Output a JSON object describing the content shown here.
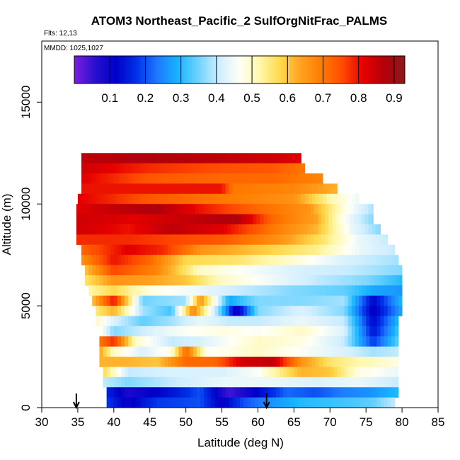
{
  "chart_data": {
    "type": "heatmap",
    "title": "ATOM3 Northeast_Pacific_2 SulfOrgNitFrac_PALMS",
    "subtitle_flights": "Flts: 12,13",
    "subtitle_dates": "MMDD: 1025,1027",
    "xlabel": "Latitude (deg N)",
    "ylabel": "Altitude (m)",
    "xlim": [
      30,
      85
    ],
    "ylim": [
      0,
      18000
    ],
    "x_ticks": [
      "30",
      "35",
      "40",
      "45",
      "50",
      "55",
      "60",
      "65",
      "70",
      "75",
      "80",
      "85"
    ],
    "y_ticks": [
      "0",
      "5000",
      "10000",
      "15000"
    ],
    "colorbar": {
      "range": [
        0.0,
        0.93
      ],
      "ticks": [
        "0.1",
        "0.2",
        "0.3",
        "0.4",
        "0.5",
        "0.6",
        "0.7",
        "0.8",
        "0.9"
      ],
      "colors": [
        "#7a1fe0",
        "#2a10d0",
        "#0000c8",
        "#0030e8",
        "#1e78ff",
        "#16b4ff",
        "#6fd3ff",
        "#cfeeff",
        "#fffff5",
        "#fff7a8",
        "#ffd84a",
        "#ffa01e",
        "#ff7a00",
        "#ff4a00",
        "#e60000",
        "#b4000a",
        "#8b1a1a"
      ]
    },
    "grid": false,
    "markers": {
      "arrow_latitudes": [
        34.8,
        61.2
      ]
    },
    "bands": [
      {
        "alt": [
          12000,
          12500
        ],
        "lat": [
          35.5,
          66
        ],
        "stops": [
          [
            35.5,
            0.86
          ],
          [
            45,
            0.88
          ],
          [
            55,
            0.86
          ],
          [
            63,
            0.84
          ],
          [
            66,
            0.82
          ]
        ]
      },
      {
        "alt": [
          11500,
          12000
        ],
        "lat": [
          35.5,
          66.5
        ],
        "stops": [
          [
            35.5,
            0.84
          ],
          [
            45,
            0.78
          ],
          [
            55,
            0.75
          ],
          [
            62,
            0.74
          ],
          [
            66.5,
            0.7
          ]
        ]
      },
      {
        "alt": [
          11000,
          11500
        ],
        "lat": [
          35.5,
          69
        ],
        "stops": [
          [
            35.5,
            0.82
          ],
          [
            45,
            0.74
          ],
          [
            55,
            0.72
          ],
          [
            62,
            0.72
          ],
          [
            69,
            0.68
          ]
        ]
      },
      {
        "alt": [
          10500,
          11000
        ],
        "lat": [
          35.5,
          71
        ],
        "stops": [
          [
            35.5,
            0.8
          ],
          [
            42,
            0.8
          ],
          [
            55,
            0.8
          ],
          [
            56.5,
            0.7
          ],
          [
            65,
            0.68
          ],
          [
            71,
            0.62
          ]
        ]
      },
      {
        "alt": [
          10000,
          10500
        ],
        "lat": [
          35,
          74
        ],
        "stops": [
          [
            35,
            0.82
          ],
          [
            45,
            0.74
          ],
          [
            55,
            0.7
          ],
          [
            65,
            0.66
          ],
          [
            70,
            0.52
          ],
          [
            74,
            0.44
          ]
        ]
      },
      {
        "alt": [
          9500,
          10000
        ],
        "lat": [
          34.8,
          76
        ],
        "stops": [
          [
            34.8,
            0.82
          ],
          [
            41,
            0.86
          ],
          [
            46,
            0.88
          ],
          [
            52,
            0.8
          ],
          [
            60,
            0.72
          ],
          [
            67,
            0.66
          ],
          [
            72,
            0.48
          ],
          [
            76,
            0.38
          ]
        ]
      },
      {
        "alt": [
          9000,
          9500
        ],
        "lat": [
          34.8,
          76
        ],
        "stops": [
          [
            34.8,
            0.84
          ],
          [
            43,
            0.82
          ],
          [
            52,
            0.86
          ],
          [
            57,
            0.88
          ],
          [
            62,
            0.72
          ],
          [
            68,
            0.64
          ],
          [
            72,
            0.46
          ],
          [
            76,
            0.36
          ]
        ]
      },
      {
        "alt": [
          8500,
          9000
        ],
        "lat": [
          34.8,
          77
        ],
        "stops": [
          [
            34.8,
            0.84
          ],
          [
            42,
            0.8
          ],
          [
            48,
            0.86
          ],
          [
            55,
            0.82
          ],
          [
            62,
            0.7
          ],
          [
            68,
            0.62
          ],
          [
            73,
            0.44
          ],
          [
            77,
            0.36
          ]
        ]
      },
      {
        "alt": [
          8000,
          8500
        ],
        "lat": [
          34.8,
          78
        ],
        "stops": [
          [
            34.8,
            0.78
          ],
          [
            42,
            0.78
          ],
          [
            48,
            0.76
          ],
          [
            55,
            0.74
          ],
          [
            63,
            0.66
          ],
          [
            69,
            0.56
          ],
          [
            74,
            0.44
          ],
          [
            78,
            0.4
          ]
        ]
      },
      {
        "alt": [
          7500,
          8000
        ],
        "lat": [
          35.5,
          79
        ],
        "stops": [
          [
            35.5,
            0.72
          ],
          [
            42,
            0.82
          ],
          [
            47,
            0.78
          ],
          [
            52,
            0.66
          ],
          [
            60,
            0.6
          ],
          [
            68,
            0.54
          ],
          [
            74,
            0.44
          ],
          [
            79,
            0.4
          ]
        ]
      },
      {
        "alt": [
          7000,
          7500
        ],
        "lat": [
          35.5,
          79.5
        ],
        "stops": [
          [
            35.5,
            0.66
          ],
          [
            40,
            0.8
          ],
          [
            45,
            0.72
          ],
          [
            50,
            0.58
          ],
          [
            57,
            0.56
          ],
          [
            64,
            0.5
          ],
          [
            72,
            0.42
          ],
          [
            79.5,
            0.38
          ]
        ]
      },
      {
        "alt": [
          6500,
          7000
        ],
        "lat": [
          36,
          80
        ],
        "stops": [
          [
            36,
            0.6
          ],
          [
            40,
            0.76
          ],
          [
            46,
            0.68
          ],
          [
            52,
            0.5
          ],
          [
            58,
            0.46
          ],
          [
            65,
            0.42
          ],
          [
            73,
            0.4
          ],
          [
            80,
            0.36
          ]
        ]
      },
      {
        "alt": [
          6000,
          6500
        ],
        "lat": [
          36,
          80
        ],
        "stops": [
          [
            36,
            0.56
          ],
          [
            40,
            0.66
          ],
          [
            45,
            0.64
          ],
          [
            50,
            0.6
          ],
          [
            55,
            0.5
          ],
          [
            60,
            0.46
          ],
          [
            68,
            0.4
          ],
          [
            75,
            0.36
          ],
          [
            80,
            0.3
          ]
        ]
      },
      {
        "alt": [
          5500,
          6000
        ],
        "lat": [
          36.5,
          80
        ],
        "stops": [
          [
            36.5,
            0.52
          ],
          [
            40,
            0.58
          ],
          [
            45,
            0.48
          ],
          [
            52,
            0.44
          ],
          [
            58,
            0.4
          ],
          [
            65,
            0.36
          ],
          [
            72,
            0.34
          ],
          [
            76,
            0.28
          ],
          [
            80,
            0.26
          ]
        ]
      },
      {
        "alt": [
          5000,
          5500
        ],
        "lat": [
          37,
          80
        ],
        "stops": [
          [
            37,
            0.6
          ],
          [
            40,
            0.8
          ],
          [
            44,
            0.35
          ],
          [
            50,
            0.38
          ],
          [
            52,
            0.66
          ],
          [
            56,
            0.28
          ],
          [
            60,
            0.36
          ],
          [
            66,
            0.36
          ],
          [
            72,
            0.38
          ],
          [
            76,
            0.12
          ],
          [
            80,
            0.3
          ]
        ]
      },
      {
        "alt": [
          4500,
          5000
        ],
        "lat": [
          37.5,
          80
        ],
        "stops": [
          [
            37.5,
            0.55
          ],
          [
            40,
            0.62
          ],
          [
            44,
            0.38
          ],
          [
            48,
            0.32
          ],
          [
            51,
            0.68
          ],
          [
            55,
            0.32
          ],
          [
            57,
            0.08
          ],
          [
            60,
            0.36
          ],
          [
            66,
            0.42
          ],
          [
            72,
            0.36
          ],
          [
            76,
            0.1
          ],
          [
            80,
            0.28
          ]
        ]
      },
      {
        "alt": [
          4000,
          4500
        ],
        "lat": [
          37.5,
          79.5
        ],
        "stops": [
          [
            37.5,
            0.5
          ],
          [
            40,
            0.42
          ],
          [
            44,
            0.34
          ],
          [
            48,
            0.38
          ],
          [
            52,
            0.44
          ],
          [
            56,
            0.4
          ],
          [
            60,
            0.4
          ],
          [
            66,
            0.44
          ],
          [
            72,
            0.4
          ],
          [
            76,
            0.12
          ],
          [
            79.5,
            0.3
          ]
        ]
      },
      {
        "alt": [
          3500,
          4000
        ],
        "lat": [
          38,
          79.5
        ],
        "stops": [
          [
            38,
            0.48
          ],
          [
            40,
            0.36
          ],
          [
            45,
            0.42
          ],
          [
            50,
            0.46
          ],
          [
            55,
            0.48
          ],
          [
            60,
            0.46
          ],
          [
            66,
            0.5
          ],
          [
            72,
            0.42
          ],
          [
            76,
            0.14
          ],
          [
            79.5,
            0.32
          ]
        ]
      },
      {
        "alt": [
          3000,
          3500
        ],
        "lat": [
          38,
          79.5
        ],
        "stops": [
          [
            38,
            0.7
          ],
          [
            40,
            0.78
          ],
          [
            43,
            0.5
          ],
          [
            48,
            0.4
          ],
          [
            52,
            0.42
          ],
          [
            55,
            0.45
          ],
          [
            60,
            0.5
          ],
          [
            66,
            0.48
          ],
          [
            72,
            0.4
          ],
          [
            76,
            0.18
          ],
          [
            79.5,
            0.34
          ]
        ]
      },
      {
        "alt": [
          2500,
          3000
        ],
        "lat": [
          38,
          79.5
        ],
        "stops": [
          [
            38,
            0.64
          ],
          [
            40,
            0.5
          ],
          [
            44,
            0.42
          ],
          [
            48,
            0.48
          ],
          [
            50,
            0.72
          ],
          [
            53,
            0.46
          ],
          [
            60,
            0.5
          ],
          [
            66,
            0.46
          ],
          [
            72,
            0.42
          ],
          [
            76,
            0.38
          ],
          [
            79.5,
            0.4
          ]
        ]
      },
      {
        "alt": [
          2000,
          2500
        ],
        "lat": [
          38,
          79.5
        ],
        "stops": [
          [
            38,
            0.62
          ],
          [
            42,
            0.62
          ],
          [
            46,
            0.6
          ],
          [
            50,
            0.72
          ],
          [
            54,
            0.72
          ],
          [
            58,
            0.84
          ],
          [
            62,
            0.86
          ],
          [
            66,
            0.66
          ],
          [
            70,
            0.56
          ],
          [
            74,
            0.52
          ],
          [
            79.5,
            0.48
          ]
        ]
      },
      {
        "alt": [
          1500,
          2000
        ],
        "lat": [
          38.5,
          79.5
        ],
        "stops": [
          [
            38.5,
            0.58
          ],
          [
            42,
            0.4
          ],
          [
            48,
            0.42
          ],
          [
            55,
            0.42
          ],
          [
            60,
            0.46
          ],
          [
            66,
            0.62
          ],
          [
            70,
            0.6
          ],
          [
            74,
            0.48
          ],
          [
            79.5,
            0.44
          ]
        ]
      },
      {
        "alt": [
          1000,
          1500
        ],
        "lat": [
          38.5,
          79.5
        ],
        "stops": [
          [
            38.5,
            0.4
          ],
          [
            42,
            0.36
          ],
          [
            48,
            0.4
          ],
          [
            55,
            0.44
          ],
          [
            62,
            0.44
          ],
          [
            68,
            0.42
          ],
          [
            74,
            0.44
          ],
          [
            79.5,
            0.4
          ]
        ]
      },
      {
        "alt": [
          500,
          1000
        ],
        "lat": [
          39,
          79.5
        ],
        "stops": [
          [
            39,
            0.16
          ],
          [
            42,
            0.08
          ],
          [
            48,
            0.14
          ],
          [
            52,
            0.2
          ],
          [
            56,
            0.04
          ],
          [
            60,
            0.12
          ],
          [
            64,
            0.22
          ],
          [
            68,
            0.2
          ],
          [
            72,
            0.24
          ],
          [
            76,
            0.26
          ],
          [
            79.5,
            0.3
          ]
        ]
      },
      {
        "alt": [
          0,
          500
        ],
        "lat": [
          39,
          79
        ],
        "stops": [
          [
            39,
            0.18
          ],
          [
            42,
            0.1
          ],
          [
            46,
            0.18
          ],
          [
            52,
            0.2
          ],
          [
            55,
            0.1
          ],
          [
            58,
            0.2
          ],
          [
            62,
            0.26
          ],
          [
            66,
            0.3
          ],
          [
            72,
            0.32
          ],
          [
            76,
            0.34
          ],
          [
            79,
            0.4
          ]
        ]
      }
    ]
  }
}
